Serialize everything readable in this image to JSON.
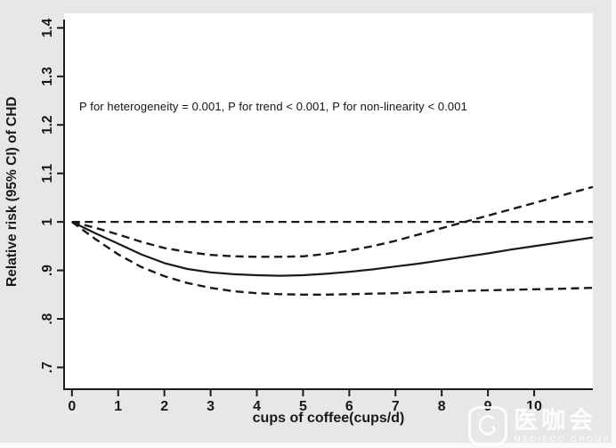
{
  "page": {
    "colors": {
      "background": "#e7e7e7",
      "plot_background": "#ffffff",
      "ink": "#1a1a1a",
      "watermark": "rgba(255,255,255,0.85)"
    }
  },
  "watermark": {
    "name": "医咖会",
    "subtitle": "MEDIECO GROUP"
  },
  "chart_data": {
    "type": "line",
    "title": "",
    "xlabel": "cups of coffee(cups/d)",
    "ylabel": "Relative risk (95% CI) of CHD",
    "annotation": "P for heterogeneity = 0.001, P for trend < 0.001, P for non-linearity < 0.001",
    "grid": false,
    "legend": "none",
    "xlim": [
      -0.17,
      11.27
    ],
    "ylim": [
      0.655,
      1.43
    ],
    "x_ticks": {
      "values": [
        0,
        1,
        2,
        3,
        4,
        5,
        6,
        7,
        8,
        9,
        10
      ],
      "labels": [
        "0",
        "1",
        "2",
        "3",
        "4",
        "5",
        "6",
        "7",
        "8",
        "9",
        "10"
      ]
    },
    "y_ticks": {
      "values": [
        0.7,
        0.8,
        0.9,
        1.0,
        1.1,
        1.2,
        1.3,
        1.4
      ],
      "labels": [
        ".7",
        ".8",
        ".9",
        "1",
        "1.1",
        "1.2",
        "1.3",
        "1.4"
      ]
    },
    "reference_line": {
      "y": 1.0,
      "style": "dashed"
    },
    "x": [
      0,
      0.5,
      1,
      1.5,
      2,
      2.5,
      3,
      3.5,
      4,
      4.5,
      5,
      5.5,
      6,
      6.5,
      7,
      7.5,
      8,
      8.5,
      9,
      9.5,
      10,
      10.5,
      11.27
    ],
    "series": [
      {
        "name": "relative-risk",
        "style": "solid",
        "values": [
          1.0,
          0.977,
          0.955,
          0.933,
          0.915,
          0.903,
          0.896,
          0.892,
          0.89,
          0.889,
          0.89,
          0.893,
          0.897,
          0.902,
          0.908,
          0.914,
          0.921,
          0.928,
          0.935,
          0.943,
          0.95,
          0.957,
          0.968
        ]
      },
      {
        "name": "upper-95-ci",
        "style": "dashed",
        "values": [
          1.0,
          0.988,
          0.974,
          0.959,
          0.946,
          0.938,
          0.932,
          0.929,
          0.928,
          0.928,
          0.929,
          0.934,
          0.941,
          0.95,
          0.961,
          0.974,
          0.987,
          1.0,
          1.013,
          1.026,
          1.039,
          1.052,
          1.072
        ]
      },
      {
        "name": "lower-95-ci",
        "style": "dashed",
        "values": [
          1.0,
          0.965,
          0.933,
          0.907,
          0.888,
          0.874,
          0.864,
          0.857,
          0.853,
          0.851,
          0.85,
          0.85,
          0.851,
          0.852,
          0.853,
          0.855,
          0.856,
          0.858,
          0.859,
          0.86,
          0.861,
          0.862,
          0.864
        ]
      }
    ]
  }
}
